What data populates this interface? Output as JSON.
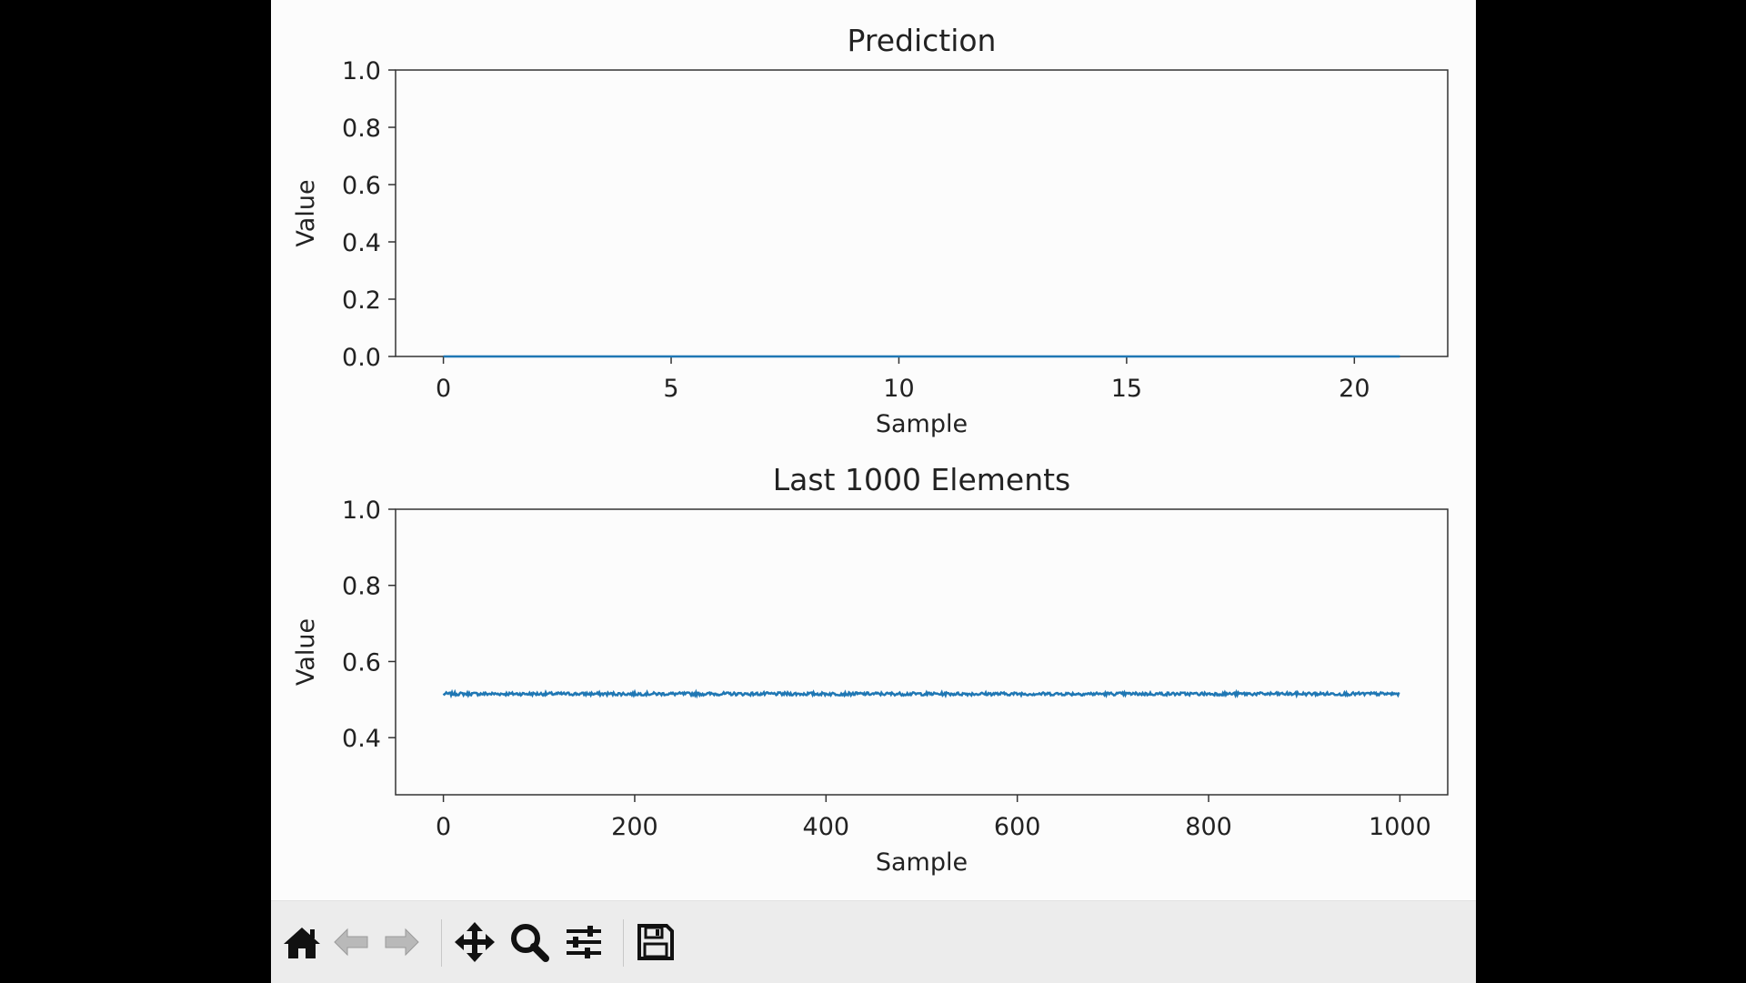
{
  "window": {
    "background": "#fcfcfc"
  },
  "toolbar": {
    "buttons": [
      {
        "name": "home-button",
        "icon": "home-icon",
        "enabled": true
      },
      {
        "name": "back-button",
        "icon": "back-arrow-icon",
        "enabled": false
      },
      {
        "name": "forward-button",
        "icon": "forward-arrow-icon",
        "enabled": false
      },
      {
        "name": "pan-button",
        "icon": "move-arrows-icon",
        "enabled": true
      },
      {
        "name": "zoom-button",
        "icon": "magnifier-icon",
        "enabled": true
      },
      {
        "name": "configure-subplots-button",
        "icon": "sliders-icon",
        "enabled": true
      },
      {
        "name": "save-button",
        "icon": "floppy-disk-icon",
        "enabled": true
      }
    ]
  },
  "chart_data": [
    {
      "type": "line",
      "title": "Prediction",
      "xlabel": "Sample",
      "ylabel": "Value",
      "xlim": [
        -1.05,
        22.05
      ],
      "ylim": [
        0.0,
        1.0
      ],
      "xticks": [
        "0",
        "5",
        "10",
        "15",
        "20"
      ],
      "yticks": [
        "0.0",
        "0.2",
        "0.4",
        "0.6",
        "0.8",
        "1.0"
      ],
      "grid": false,
      "series": [
        {
          "color": "#1f77b4",
          "x": [
            0,
            1,
            2,
            3,
            4,
            5,
            6,
            7,
            8,
            9,
            10,
            11,
            12,
            13,
            14,
            15,
            16,
            17,
            18,
            19,
            20,
            21
          ],
          "y": [
            0,
            0,
            0,
            0,
            0,
            0,
            0,
            0,
            0,
            0,
            0,
            0,
            0,
            0,
            0,
            0,
            0,
            0,
            0,
            0,
            0,
            0
          ]
        }
      ]
    },
    {
      "type": "line",
      "title": "Last 1000 Elements",
      "xlabel": "Sample",
      "ylabel": "Value",
      "xlim": [
        -50,
        1050
      ],
      "ylim": [
        0.25,
        1.0
      ],
      "xticks": [
        "0",
        "200",
        "400",
        "600",
        "800",
        "1000"
      ],
      "yticks": [
        "0.4",
        "0.6",
        "0.8",
        "1.0"
      ],
      "grid": false,
      "series": [
        {
          "color": "#1f77b4",
          "x_start": 0,
          "x_end": 999,
          "mean": 0.515,
          "noise": 0.004
        }
      ]
    }
  ]
}
